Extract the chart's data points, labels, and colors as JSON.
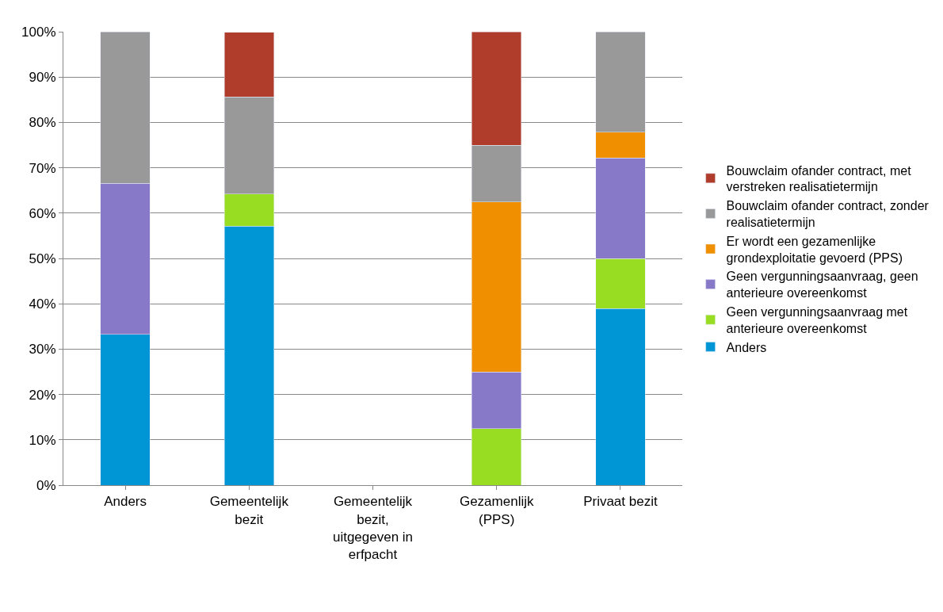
{
  "chart_data": {
    "type": "bar",
    "stacked": true,
    "categories": [
      "Anders",
      "Gemeentelijk bezit",
      "Gemeentelijk bezit, uitgegeven in erfpacht",
      "Gezamenlijk (PPS)",
      "Privaat bezit"
    ],
    "series": [
      {
        "name": "Anders",
        "color": "#0096d6",
        "values": [
          33.3,
          57.1,
          null,
          null,
          38.9
        ]
      },
      {
        "name": "Geen vergunningsaanvraag met anterieure overeenkomst",
        "color": "#99dd22",
        "values": [
          null,
          7.1,
          null,
          12.5,
          11.1
        ]
      },
      {
        "name": "Geen vergunningsaanvraag, geen anterieure overeenkomst",
        "color": "#8878c8",
        "values": [
          33.3,
          null,
          null,
          12.5,
          22.2
        ]
      },
      {
        "name": "Er wordt een gezamenlijke grondexploitatie gevoerd (PPS)",
        "color": "#f09000",
        "values": [
          null,
          null,
          null,
          37.5,
          5.6
        ]
      },
      {
        "name": "Bouwclaim ofander contract, zonder realisatietermijn",
        "color": "#999999",
        "values": [
          33.4,
          21.4,
          null,
          12.5,
          22.2
        ]
      },
      {
        "name": "Bouwclaim ofander contract, met verstreken realisatietermijn",
        "color": "#b03c2c",
        "values": [
          null,
          14.3,
          null,
          25,
          null
        ]
      }
    ],
    "ylim": [
      0,
      100
    ],
    "yticks": [
      {
        "value": 0,
        "label": "0%"
      },
      {
        "value": 10,
        "label": "10%"
      },
      {
        "value": 20,
        "label": "20%"
      },
      {
        "value": 30,
        "label": "30%"
      },
      {
        "value": 40,
        "label": "40%"
      },
      {
        "value": 50,
        "label": "50%"
      },
      {
        "value": 60,
        "label": "60%"
      },
      {
        "value": 70,
        "label": "70%"
      },
      {
        "value": 80,
        "label": "80%"
      },
      {
        "value": 90,
        "label": "90%"
      },
      {
        "value": 100,
        "label": "100%"
      }
    ],
    "grid": "y",
    "legend": "right"
  }
}
